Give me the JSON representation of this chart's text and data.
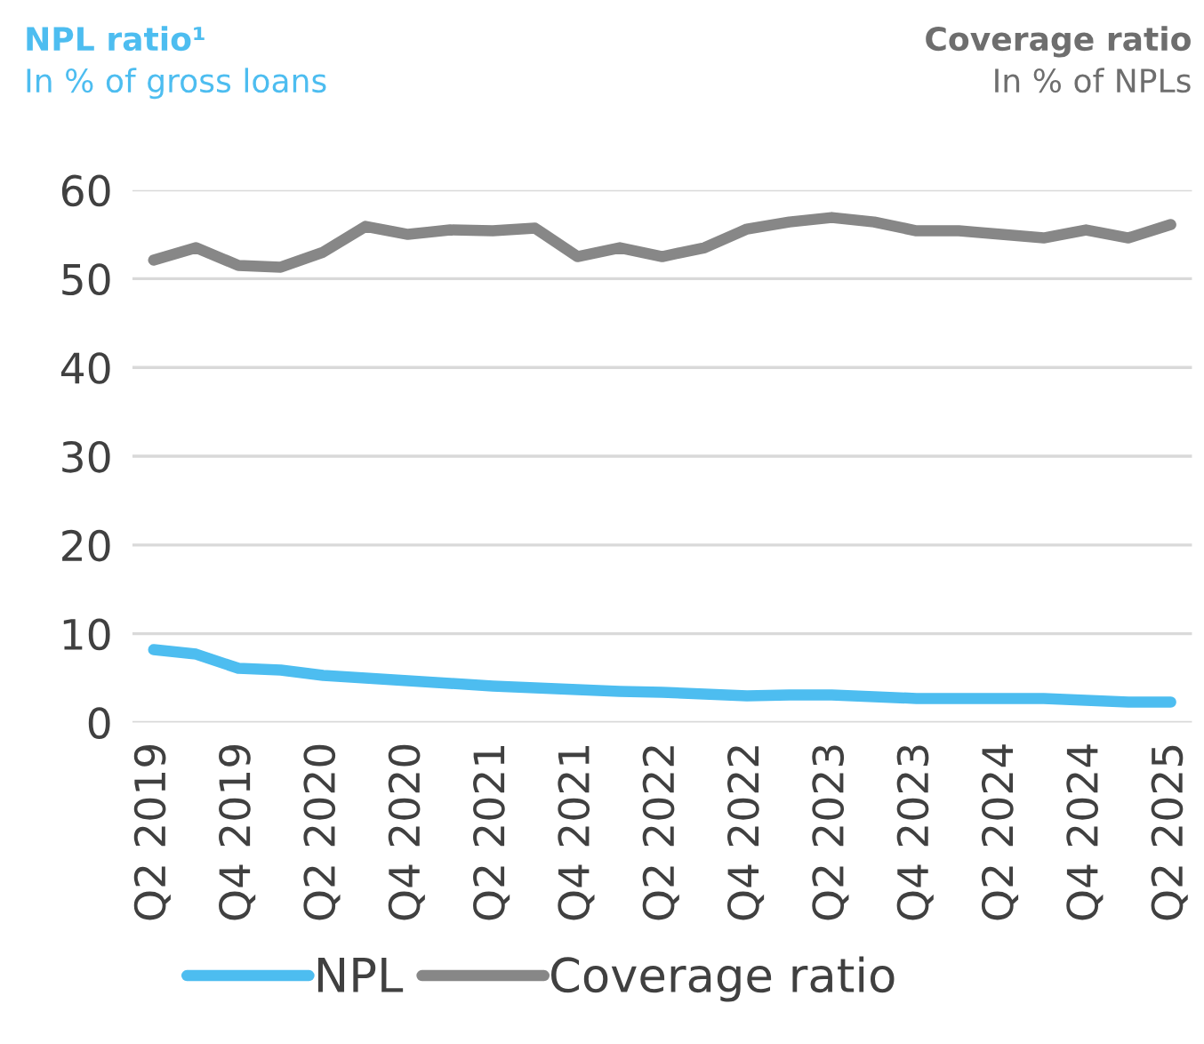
{
  "chart_data": {
    "type": "line",
    "title": "NPL ratio¹",
    "subtitle": "In % of gross loans",
    "annotations": [
      "Coverage ratio",
      "In % of NPLs"
    ],
    "categories": [
      "Q2 2019",
      null,
      "Q4 2019",
      null,
      "Q2 2020",
      null,
      "Q4 2020",
      null,
      "Q2 2021",
      null,
      "Q4 2021",
      null,
      "Q2 2022",
      null,
      "Q4 2022",
      null,
      "Q2 2023",
      null,
      "Q4 2023",
      null,
      "Q2 2024",
      null,
      "Q4 2024",
      null,
      "Q2 2025"
    ],
    "series": [
      {
        "name": "NPL",
        "color": "#4dbdf0",
        "values": [
          8.2,
          7.7,
          6.1,
          5.9,
          5.3,
          5.0,
          4.7,
          4.4,
          4.1,
          3.9,
          3.7,
          3.5,
          3.4,
          3.2,
          3.0,
          3.1,
          3.1,
          2.9,
          2.7,
          2.7,
          2.7,
          2.7,
          2.5,
          2.3,
          2.3
        ]
      },
      {
        "name": "Coverage ratio",
        "color": "#878787",
        "values": [
          52.1,
          53.5,
          51.5,
          51.3,
          53.0,
          55.9,
          55.0,
          55.5,
          55.4,
          55.7,
          52.5,
          53.5,
          52.5,
          53.5,
          55.6,
          56.4,
          56.9,
          56.4,
          55.4,
          55.4,
          55.0,
          54.6,
          55.5,
          54.6,
          56.1
        ]
      }
    ],
    "ylim": [
      0,
      60
    ],
    "yticks": [
      0,
      10,
      20,
      30,
      40,
      50,
      60
    ],
    "grid": "y",
    "legend": "bottom",
    "marker": "none",
    "line_style": "solid"
  }
}
